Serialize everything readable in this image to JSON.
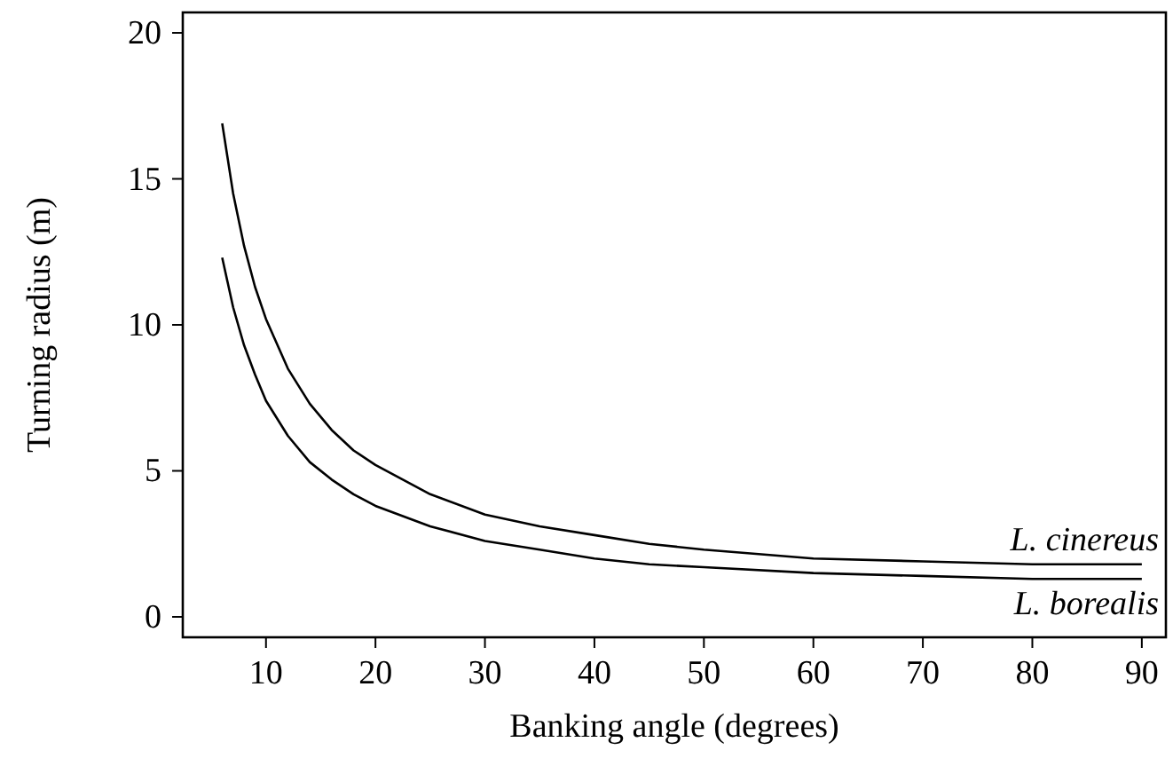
{
  "chart_data": {
    "type": "line",
    "xlabel": "Banking angle (degrees)",
    "ylabel": "Turning radius (m)",
    "x": [
      6,
      7,
      8,
      9,
      10,
      12,
      14,
      16,
      18,
      20,
      25,
      30,
      35,
      40,
      45,
      50,
      60,
      70,
      80,
      90
    ],
    "series": [
      {
        "name": "L. cinereus",
        "color": "#000000",
        "values": [
          16.9,
          14.5,
          12.7,
          11.3,
          10.2,
          8.5,
          7.3,
          6.4,
          5.7,
          5.2,
          4.2,
          3.5,
          3.1,
          2.8,
          2.5,
          2.3,
          2.0,
          1.9,
          1.8,
          1.8
        ]
      },
      {
        "name": "L. borealis",
        "color": "#000000",
        "values": [
          12.3,
          10.6,
          9.3,
          8.3,
          7.4,
          6.2,
          5.3,
          4.7,
          4.2,
          3.8,
          3.1,
          2.6,
          2.3,
          2.0,
          1.8,
          1.7,
          1.5,
          1.4,
          1.3,
          1.3
        ]
      }
    ],
    "xlim": [
      2.4,
      92.2
    ],
    "ylim": [
      -0.7,
      20.7
    ],
    "xticks": [
      10,
      20,
      30,
      40,
      50,
      60,
      70,
      80,
      90
    ],
    "yticks": [
      0,
      5,
      10,
      15,
      20
    ],
    "grid": false,
    "legend": false,
    "marker": "none",
    "line_style": "solid"
  }
}
